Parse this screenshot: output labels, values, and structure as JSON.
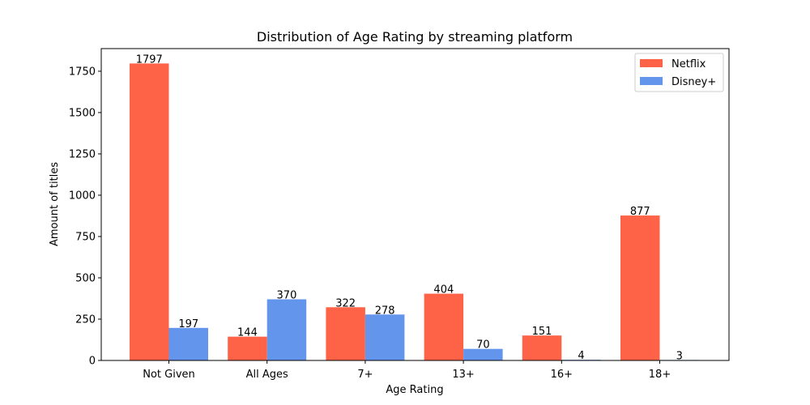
{
  "chart_data": {
    "type": "bar",
    "title": "Distribution of Age Rating by streaming platform",
    "xlabel": "Age Rating",
    "ylabel": "Amount of titles",
    "categories": [
      "Not Given",
      "All Ages",
      "7+",
      "13+",
      "16+",
      "18+"
    ],
    "series": [
      {
        "name": "Netflix",
        "color": "#ff6347",
        "values": [
          1797,
          144,
          322,
          404,
          151,
          877
        ]
      },
      {
        "name": "Disney+",
        "color": "#6495ed",
        "values": [
          197,
          370,
          278,
          70,
          4,
          3
        ]
      }
    ],
    "ylim": [
      0,
      1887
    ],
    "yticks": [
      0,
      250,
      500,
      750,
      1000,
      1250,
      1500,
      1750
    ],
    "grid": false,
    "legend_position": "top-right"
  }
}
